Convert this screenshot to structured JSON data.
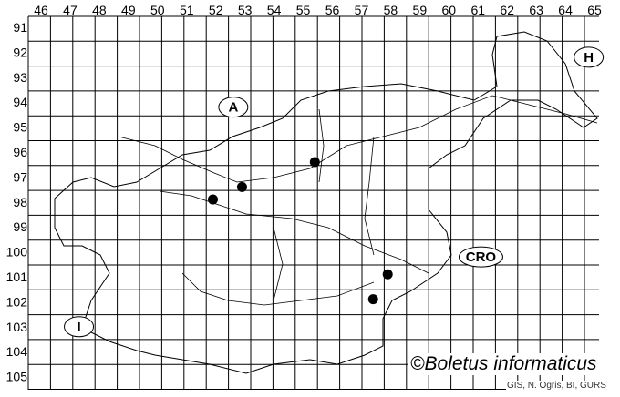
{
  "map": {
    "columns": [
      "46",
      "47",
      "48",
      "49",
      "50",
      "51",
      "52",
      "53",
      "54",
      "55",
      "56",
      "57",
      "58",
      "59",
      "60",
      "61",
      "62",
      "63",
      "64",
      "65"
    ],
    "rows": [
      "91",
      "92",
      "93",
      "94",
      "95",
      "96",
      "97",
      "98",
      "99",
      "100",
      "101",
      "102",
      "103",
      "104",
      "105"
    ],
    "country_labels": [
      {
        "text": "A",
        "col": 52.6,
        "row": 94.2
      },
      {
        "text": "H",
        "col": 64.8,
        "row": 92.2
      },
      {
        "text": "CRO",
        "col": 61.1,
        "row": 100.2
      },
      {
        "text": "I",
        "col": 47.3,
        "row": 103.0
      }
    ],
    "records": [
      {
        "col": 55.4,
        "row": 96.4
      },
      {
        "col": 52.9,
        "row": 97.4
      },
      {
        "col": 51.9,
        "row": 97.9
      },
      {
        "col": 57.9,
        "row": 100.9
      },
      {
        "col": 57.4,
        "row": 101.9
      }
    ],
    "dot_color": "#000000",
    "line_color": "#000000"
  },
  "credit": "©Boletus informaticus",
  "source": "GIS, N. Ogris, BI, GURS"
}
